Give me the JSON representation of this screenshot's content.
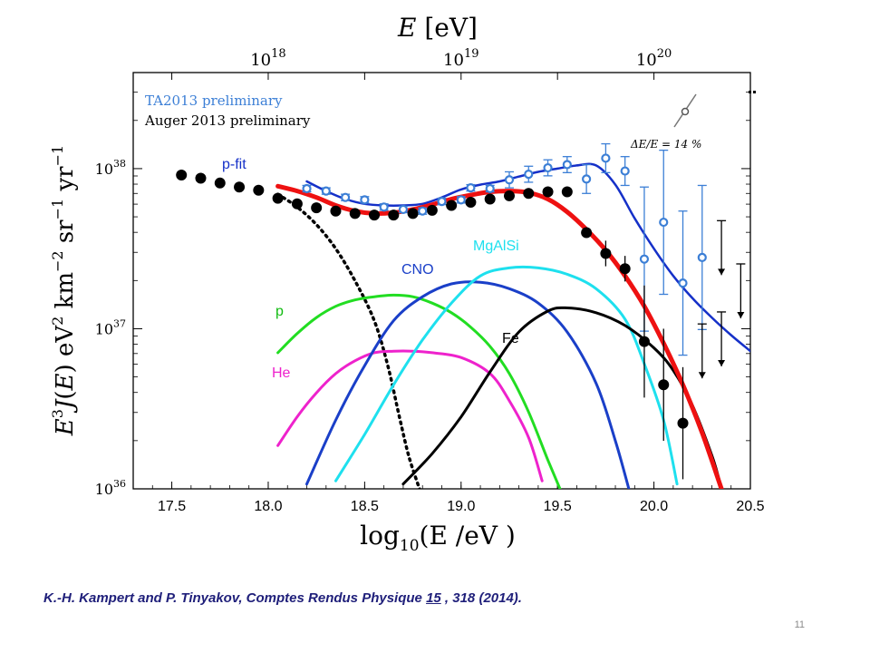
{
  "citation": {
    "prefix": "K.-H. Kampert and P. Tinyakov, Comptes Rendus Physique ",
    "volume": "15",
    "suffix": " , 318 (2014)."
  },
  "page_number": "11",
  "chart_data": {
    "type": "scatter",
    "title": "",
    "xlabel": "log10(E/eV)",
    "ylabel": "E^3 J(E)   eV^2 km^-2 sr^-1 yr^-1",
    "top_axis_label": "E [eV]",
    "top_ticks": [
      "10^18",
      "10^19",
      "10^20"
    ],
    "xlim": [
      17.3,
      20.5
    ],
    "ylim_log10": [
      36,
      38.6
    ],
    "x_ticks": [
      "17.5",
      "18.0",
      "18.5",
      "19.0",
      "19.5",
      "20.0",
      "20.5"
    ],
    "y_ticks": [
      "10^36",
      "10^37",
      "10^38"
    ],
    "legend": [
      "TA2013 preliminary",
      "Auger 2013 preliminary"
    ],
    "legend_position": "top-left",
    "annotation": "ΔE/E = 14 %",
    "colors": {
      "ta": "#3c7fd6",
      "auger": "#000000",
      "pfit": "#1530c8",
      "total": "#ee1111",
      "p": "#22dd22",
      "he": "#ee22cc",
      "cno": "#1a3fc8",
      "mgalsi": "#1ee0ee",
      "fe": "#000000",
      "dotted": "#000000"
    },
    "series": [
      {
        "name": "TA2013 preliminary",
        "style": "open-circle",
        "points": [
          [
            18.2,
            37.875
          ],
          [
            18.3,
            37.86
          ],
          [
            18.4,
            37.82
          ],
          [
            18.5,
            37.805
          ],
          [
            18.6,
            37.76
          ],
          [
            18.7,
            37.745
          ],
          [
            18.8,
            37.735
          ],
          [
            18.9,
            37.795
          ],
          [
            19.0,
            37.805
          ],
          [
            19.05,
            37.88
          ],
          [
            19.15,
            37.875
          ],
          [
            19.25,
            37.93
          ],
          [
            19.35,
            37.965
          ],
          [
            19.45,
            38.005
          ],
          [
            19.55,
            38.025
          ],
          [
            19.65,
            37.935
          ],
          [
            19.75,
            38.065
          ],
          [
            19.85,
            37.985
          ],
          [
            19.95,
            37.435
          ],
          [
            20.05,
            37.665
          ],
          [
            20.15,
            37.285
          ],
          [
            20.25,
            37.445
          ]
        ]
      },
      {
        "name": "Auger 2013 preliminary",
        "style": "filled-circle",
        "points": [
          [
            17.55,
            37.96
          ],
          [
            17.65,
            37.94
          ],
          [
            17.75,
            37.91
          ],
          [
            17.85,
            37.885
          ],
          [
            17.95,
            37.865
          ],
          [
            18.05,
            37.815
          ],
          [
            18.15,
            37.78
          ],
          [
            18.25,
            37.755
          ],
          [
            18.35,
            37.735
          ],
          [
            18.45,
            37.72
          ],
          [
            18.55,
            37.71
          ],
          [
            18.65,
            37.71
          ],
          [
            18.75,
            37.72
          ],
          [
            18.85,
            37.74
          ],
          [
            18.95,
            37.77
          ],
          [
            19.05,
            37.79
          ],
          [
            19.15,
            37.81
          ],
          [
            19.25,
            37.83
          ],
          [
            19.35,
            37.845
          ],
          [
            19.45,
            37.855
          ],
          [
            19.55,
            37.855
          ],
          [
            19.65,
            37.6
          ],
          [
            19.75,
            37.47
          ],
          [
            19.85,
            37.375
          ],
          [
            19.95,
            36.92
          ],
          [
            20.05,
            36.65
          ],
          [
            20.15,
            36.41
          ]
        ]
      }
    ],
    "upper_limits_ta": [
      [
        20.35,
        37.335
      ],
      [
        20.45,
        37.065
      ]
    ],
    "upper_limits_auger": [
      [
        20.25,
        36.69
      ],
      [
        20.35,
        36.765
      ]
    ],
    "curves": [
      {
        "name": "p-fit",
        "points": [
          [
            18.2,
            37.92
          ],
          [
            18.3,
            37.86
          ],
          [
            18.4,
            37.81
          ],
          [
            18.5,
            37.78
          ],
          [
            18.6,
            37.77
          ],
          [
            18.7,
            37.77
          ],
          [
            18.8,
            37.78
          ],
          [
            18.9,
            37.82
          ],
          [
            19.0,
            37.87
          ],
          [
            19.1,
            37.9
          ],
          [
            19.2,
            37.92
          ],
          [
            19.3,
            37.95
          ],
          [
            19.4,
            37.98
          ],
          [
            19.5,
            38.0
          ],
          [
            19.6,
            38.02
          ],
          [
            19.7,
            38.02
          ],
          [
            19.8,
            37.9
          ],
          [
            19.9,
            37.69
          ],
          [
            20.0,
            37.5
          ],
          [
            20.1,
            37.33
          ],
          [
            20.2,
            37.19
          ],
          [
            20.3,
            37.07
          ],
          [
            20.4,
            36.96
          ],
          [
            20.5,
            36.86
          ]
        ]
      },
      {
        "name": "total",
        "points": [
          [
            18.05,
            37.89
          ],
          [
            18.15,
            37.86
          ],
          [
            18.25,
            37.82
          ],
          [
            18.35,
            37.77
          ],
          [
            18.45,
            37.735
          ],
          [
            18.55,
            37.72
          ],
          [
            18.65,
            37.725
          ],
          [
            18.75,
            37.745
          ],
          [
            18.85,
            37.775
          ],
          [
            18.95,
            37.81
          ],
          [
            19.05,
            37.835
          ],
          [
            19.15,
            37.855
          ],
          [
            19.25,
            37.86
          ],
          [
            19.35,
            37.85
          ],
          [
            19.45,
            37.81
          ],
          [
            19.55,
            37.73
          ],
          [
            19.65,
            37.62
          ],
          [
            19.75,
            37.49
          ],
          [
            19.85,
            37.33
          ],
          [
            19.95,
            37.14
          ],
          [
            20.05,
            36.91
          ],
          [
            20.15,
            36.65
          ],
          [
            20.25,
            36.35
          ],
          [
            20.35,
            36.0
          ]
        ]
      },
      {
        "name": "p",
        "label": "p",
        "points": [
          [
            18.05,
            36.85
          ],
          [
            18.15,
            36.97
          ],
          [
            18.25,
            37.07
          ],
          [
            18.35,
            37.14
          ],
          [
            18.45,
            37.18
          ],
          [
            18.55,
            37.2
          ],
          [
            18.65,
            37.21
          ],
          [
            18.75,
            37.2
          ],
          [
            18.85,
            37.16
          ],
          [
            18.95,
            37.1
          ],
          [
            19.05,
            37.01
          ],
          [
            19.15,
            36.89
          ],
          [
            19.25,
            36.72
          ],
          [
            19.35,
            36.48
          ],
          [
            19.45,
            36.18
          ],
          [
            19.52,
            35.98
          ]
        ]
      },
      {
        "name": "He",
        "label": "He",
        "points": [
          [
            18.05,
            36.27
          ],
          [
            18.15,
            36.45
          ],
          [
            18.25,
            36.6
          ],
          [
            18.35,
            36.72
          ],
          [
            18.45,
            36.8
          ],
          [
            18.55,
            36.85
          ],
          [
            18.65,
            36.86
          ],
          [
            18.75,
            36.86
          ],
          [
            18.85,
            36.85
          ],
          [
            19.0,
            36.82
          ],
          [
            19.15,
            36.72
          ],
          [
            19.25,
            36.55
          ],
          [
            19.35,
            36.32
          ],
          [
            19.42,
            36.05
          ]
        ]
      },
      {
        "name": "CNO",
        "label": "CNO",
        "points": [
          [
            18.2,
            36.03
          ],
          [
            18.35,
            36.43
          ],
          [
            18.5,
            36.77
          ],
          [
            18.65,
            37.05
          ],
          [
            18.8,
            37.2
          ],
          [
            18.95,
            37.28
          ],
          [
            19.1,
            37.29
          ],
          [
            19.25,
            37.25
          ],
          [
            19.4,
            37.16
          ],
          [
            19.55,
            36.98
          ],
          [
            19.7,
            36.66
          ],
          [
            19.8,
            36.3
          ],
          [
            19.87,
            36.0
          ]
        ]
      },
      {
        "name": "MgAlSi",
        "label": "MgAlSi",
        "points": [
          [
            18.35,
            36.05
          ],
          [
            18.5,
            36.34
          ],
          [
            18.65,
            36.65
          ],
          [
            18.8,
            36.93
          ],
          [
            18.95,
            37.16
          ],
          [
            19.1,
            37.33
          ],
          [
            19.25,
            37.38
          ],
          [
            19.4,
            37.38
          ],
          [
            19.55,
            37.34
          ],
          [
            19.7,
            37.25
          ],
          [
            19.85,
            37.06
          ],
          [
            19.95,
            36.78
          ],
          [
            20.05,
            36.43
          ],
          [
            20.12,
            36.03
          ]
        ]
      },
      {
        "name": "Fe",
        "label": "Fe",
        "points": [
          [
            18.7,
            36.03
          ],
          [
            18.85,
            36.22
          ],
          [
            19.0,
            36.45
          ],
          [
            19.15,
            36.73
          ],
          [
            19.3,
            36.98
          ],
          [
            19.45,
            37.11
          ],
          [
            19.55,
            37.13
          ],
          [
            19.7,
            37.1
          ],
          [
            19.85,
            37.02
          ],
          [
            20.0,
            36.88
          ],
          [
            20.1,
            36.74
          ],
          [
            20.2,
            36.52
          ],
          [
            20.3,
            36.21
          ],
          [
            20.34,
            36.05
          ]
        ]
      },
      {
        "name": "dotted",
        "style": "dotted",
        "points": [
          [
            18.05,
            37.84
          ],
          [
            18.15,
            37.76
          ],
          [
            18.25,
            37.65
          ],
          [
            18.35,
            37.5
          ],
          [
            18.45,
            37.3
          ],
          [
            18.55,
            37.05
          ],
          [
            18.62,
            36.77
          ],
          [
            18.68,
            36.45
          ],
          [
            18.73,
            36.2
          ],
          [
            18.79,
            35.98
          ]
        ]
      }
    ]
  }
}
